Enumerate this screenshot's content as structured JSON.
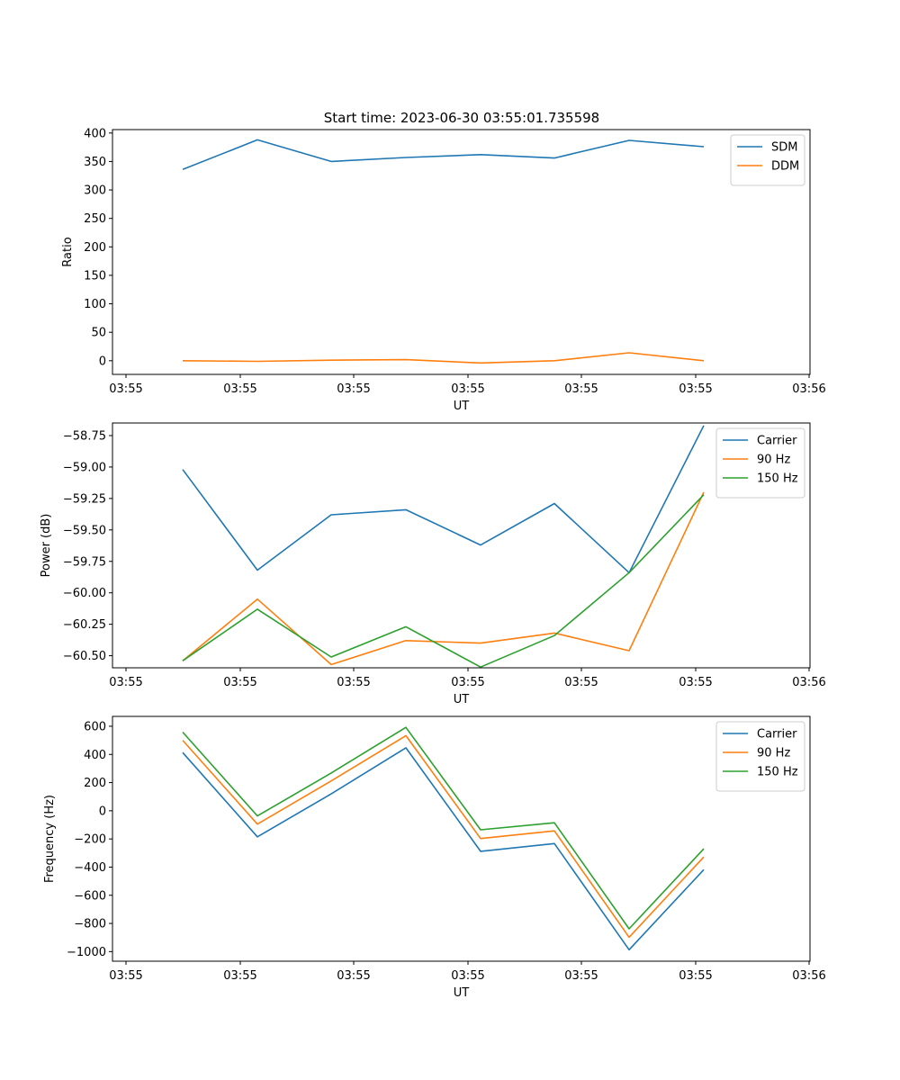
{
  "title": "Start time: 2023-06-30 03:55:01.735598",
  "colors": {
    "c0": "#1f77b4",
    "c1": "#ff7f0e",
    "c2": "#2ca02c"
  },
  "chart_data": [
    {
      "type": "line",
      "title": "Start time: 2023-06-30 03:55:01.735598",
      "xlabel": "UT",
      "ylabel": "Ratio",
      "x_tick_labels": [
        "03:55",
        "03:55",
        "03:55",
        "03:55",
        "03:55",
        "03:55",
        "03:56"
      ],
      "y_ticks": [
        0,
        50,
        100,
        150,
        200,
        250,
        300,
        350,
        400
      ],
      "y_tick_labels": [
        "0",
        "50",
        "100",
        "150",
        "200",
        "250",
        "300",
        "350",
        "400"
      ],
      "ylim": [
        -24,
        406
      ],
      "legend_position": "top-right",
      "grid": false,
      "series": [
        {
          "name": "SDM",
          "values": [
            336,
            388,
            350,
            357,
            362,
            356,
            387,
            376
          ]
        },
        {
          "name": "DDM",
          "values": [
            0,
            -1,
            1,
            2,
            -4,
            0,
            14,
            0
          ]
        }
      ]
    },
    {
      "type": "line",
      "xlabel": "UT",
      "ylabel": "Power (dB)",
      "x_tick_labels": [
        "03:55",
        "03:55",
        "03:55",
        "03:55",
        "03:55",
        "03:55",
        "03:56"
      ],
      "y_ticks": [
        -60.5,
        -60.25,
        -60.0,
        -59.75,
        -59.5,
        -59.25,
        -59.0,
        -58.75
      ],
      "y_tick_labels": [
        "−60.50",
        "−60.25",
        "−60.00",
        "−59.75",
        "−59.50",
        "−59.25",
        "−59.00",
        "−58.75"
      ],
      "ylim": [
        -60.596,
        -58.65
      ],
      "legend_position": "top-right",
      "grid": false,
      "series": [
        {
          "name": "Carrier",
          "values": [
            -59.02,
            -59.82,
            -59.38,
            -59.34,
            -59.62,
            -59.29,
            -59.84,
            -58.67
          ]
        },
        {
          "name": "90 Hz",
          "values": [
            -60.54,
            -60.05,
            -60.57,
            -60.38,
            -60.4,
            -60.32,
            -60.46,
            -59.2
          ]
        },
        {
          "name": "150 Hz",
          "values": [
            -60.54,
            -60.13,
            -60.51,
            -60.27,
            -60.59,
            -60.34,
            -59.84,
            -59.22
          ]
        }
      ]
    },
    {
      "type": "line",
      "xlabel": "UT",
      "ylabel": "Frequency (Hz)",
      "x_tick_labels": [
        "03:55",
        "03:55",
        "03:55",
        "03:55",
        "03:55",
        "03:55",
        "03:56"
      ],
      "y_ticks": [
        -1000,
        -800,
        -600,
        -400,
        -200,
        0,
        200,
        400,
        600
      ],
      "y_tick_labels": [
        "−1000",
        "−800",
        "−600",
        "−400",
        "−200",
        "0",
        "200",
        "400",
        "600"
      ],
      "ylim": [
        -1068,
        670
      ],
      "legend_position": "top-right",
      "grid": false,
      "series": [
        {
          "name": "Carrier",
          "values": [
            413,
            -185,
            120,
            447,
            -288,
            -233,
            -987,
            -418
          ]
        },
        {
          "name": "90 Hz",
          "values": [
            500,
            -95,
            212,
            533,
            -197,
            -143,
            -898,
            -328
          ]
        },
        {
          "name": "150 Hz",
          "values": [
            558,
            -37,
            268,
            592,
            -135,
            -85,
            -838,
            -270
          ]
        }
      ]
    }
  ]
}
